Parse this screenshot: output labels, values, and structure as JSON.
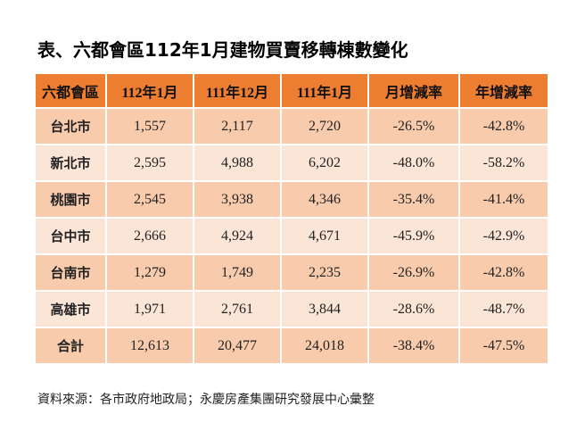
{
  "title": "表、六都會區112年1月建物買賣移轉棟數變化",
  "table": {
    "headers": [
      "六都會區",
      "112年1月",
      "111年12月",
      "111年1月",
      "月增減率",
      "年增減率"
    ],
    "rows": [
      [
        "台北市",
        "1,557",
        "2,117",
        "2,720",
        "-26.5%",
        "-42.8%"
      ],
      [
        "新北市",
        "2,595",
        "4,988",
        "6,202",
        "-48.0%",
        "-58.2%"
      ],
      [
        "桃園市",
        "2,545",
        "3,938",
        "4,346",
        "-35.4%",
        "-41.4%"
      ],
      [
        "台中市",
        "2,666",
        "4,924",
        "4,671",
        "-45.9%",
        "-42.9%"
      ],
      [
        "台南市",
        "1,279",
        "1,749",
        "2,235",
        "-26.9%",
        "-42.8%"
      ],
      [
        "高雄市",
        "1,971",
        "2,761",
        "3,844",
        "-28.6%",
        "-48.7%"
      ],
      [
        "合計",
        "12,613",
        "20,477",
        "24,018",
        "-38.4%",
        "-47.5%"
      ]
    ]
  },
  "footnote": "資料來源：各市政府地政局；永慶房產集團研究發展中心彙整"
}
